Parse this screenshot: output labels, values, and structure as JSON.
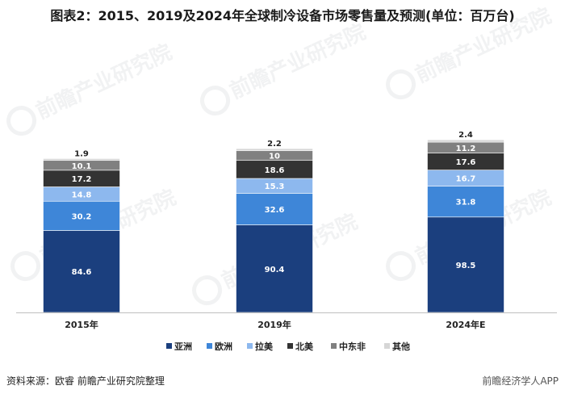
{
  "title": "图表2：2015、2019及2024年全球制冷设备市场零售量及预测(单位：百万台)",
  "source": "资料来源：欧睿 前瞻产业研究院整理",
  "brand": "前瞻经济学人APP",
  "watermark": "前瞻产业研究院",
  "chart_data": {
    "type": "bar",
    "stacked": true,
    "categories": [
      "2015年",
      "2019年",
      "2024年E"
    ],
    "series": [
      {
        "name": "亚洲",
        "color": "#1b3f7e",
        "values": [
          84.6,
          90.4,
          98.5
        ]
      },
      {
        "name": "欧洲",
        "color": "#3e86d8",
        "values": [
          30.2,
          32.6,
          31.8
        ]
      },
      {
        "name": "拉美",
        "color": "#8db8ee",
        "values": [
          14.8,
          15.3,
          16.7
        ]
      },
      {
        "name": "北美",
        "color": "#333333",
        "values": [
          17.2,
          18.6,
          17.6
        ]
      },
      {
        "name": "中东非",
        "color": "#808080",
        "values": [
          10.1,
          10,
          11.2
        ]
      },
      {
        "name": "其他",
        "color": "#d6d6d6",
        "values": [
          1.9,
          2.2,
          2.4
        ]
      }
    ],
    "legend_position": "bottom",
    "grid": false
  }
}
